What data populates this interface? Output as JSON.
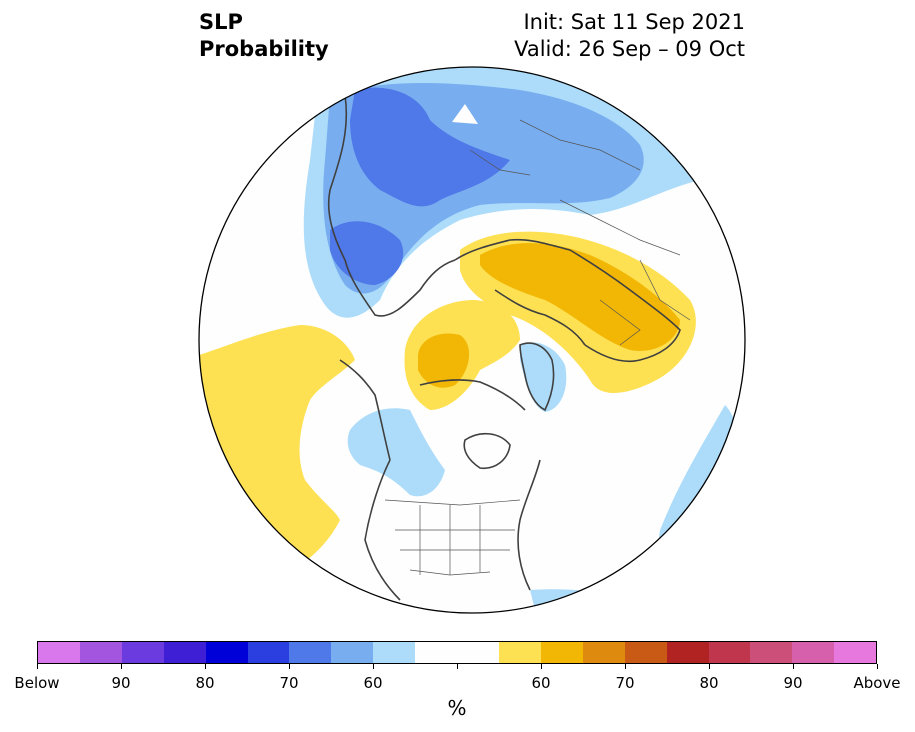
{
  "title": {
    "variable": "SLP",
    "product": "Probability",
    "init": "Init: Sat 11 Sep 2021",
    "valid": "Valid: 26 Sep – 09 Oct"
  },
  "map": {
    "projection": "north-polar-stereographic",
    "features": [
      "coastlines",
      "country-borders",
      "us-state-borders"
    ],
    "below_normal_regions": [
      "Siberia / northern Asia",
      "Alaska / Bering Sea",
      "western Canada",
      "northeast Atlantic off Europe",
      "central Arctic near Greenland"
    ],
    "above_normal_regions": [
      "Europe / Scandinavia",
      "Greenland / Canadian Arctic",
      "North Pacific"
    ]
  },
  "colorbar": {
    "colors": [
      "#d977ec",
      "#a355e0",
      "#6b3be0",
      "#3f1fd6",
      "#0000d9",
      "#2b3fe0",
      "#4f78e8",
      "#78aef0",
      "#acdcfa",
      "#fefefe",
      "#fefefe",
      "#fde152",
      "#f2b705",
      "#de8a0e",
      "#c95a16",
      "#b12323",
      "#c0364c",
      "#cc4f7a",
      "#d760ac",
      "#e779de"
    ],
    "tick_labels": [
      "Below",
      "90",
      "80",
      "70",
      "60",
      "",
      "60",
      "70",
      "80",
      "90",
      "Above"
    ],
    "unit": "%"
  }
}
